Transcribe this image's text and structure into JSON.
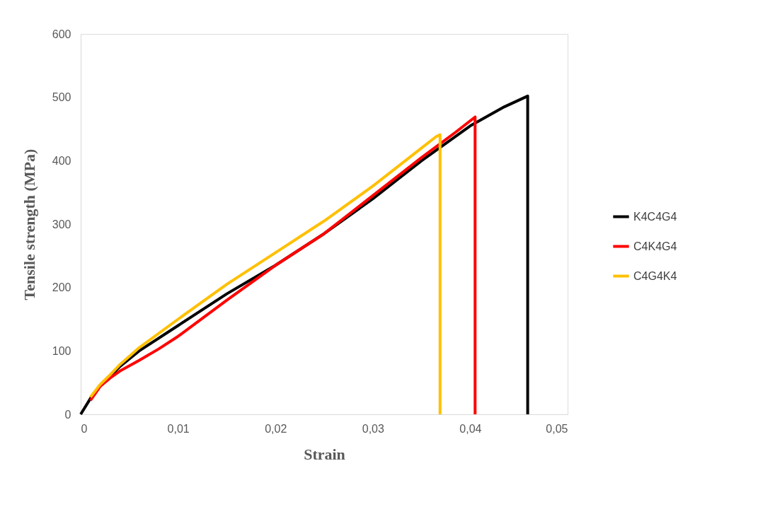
{
  "chart_data": {
    "type": "line",
    "xlabel": "Strain",
    "ylabel": "Tensile  strength (MPa)",
    "xlim": [
      0,
      0.05
    ],
    "xticks": [
      0,
      {
        "value": 0.01,
        "label": "0,01"
      },
      {
        "value": 0.02,
        "label": "0,02"
      },
      {
        "value": 0.03,
        "label": "0,03"
      },
      {
        "value": 0.04,
        "label": "0,04"
      },
      {
        "value": 0.05,
        "label": "0,05"
      }
    ],
    "ylim": [
      0,
      600
    ],
    "yticks": [
      0,
      100,
      200,
      300,
      400,
      500,
      600
    ],
    "grid": false,
    "legend": "right",
    "line_style": "solid",
    "marker": "none",
    "series": [
      {
        "name": "K4C4G4",
        "color": "#000000",
        "x": [
          0,
          0.001,
          0.002,
          0.003,
          0.004,
          0.006,
          0.01,
          0.015,
          0.02,
          0.025,
          0.03,
          0.035,
          0.04,
          0.0435,
          0.0459,
          0.0459
        ],
        "values": [
          0,
          25,
          45,
          60,
          75,
          100,
          140,
          190,
          235,
          285,
          340,
          400,
          455,
          485,
          502,
          0
        ]
      },
      {
        "name": "C4K4G4",
        "color": "#ff0000",
        "x": [
          0.001,
          0.002,
          0.003,
          0.004,
          0.006,
          0.008,
          0.01,
          0.015,
          0.02,
          0.025,
          0.03,
          0.035,
          0.0385,
          0.0405,
          0.0405
        ],
        "values": [
          22,
          44,
          57,
          68,
          85,
          103,
          123,
          180,
          235,
          285,
          345,
          405,
          445,
          469,
          0
        ]
      },
      {
        "name": "C4G4K4",
        "color": "#ffc000",
        "x": [
          0.001,
          0.002,
          0.003,
          0.004,
          0.006,
          0.01,
          0.015,
          0.02,
          0.025,
          0.03,
          0.035,
          0.0365,
          0.0369,
          0.0369
        ],
        "values": [
          27,
          47,
          62,
          78,
          105,
          150,
          205,
          255,
          305,
          360,
          420,
          438,
          441,
          0
        ]
      }
    ]
  }
}
